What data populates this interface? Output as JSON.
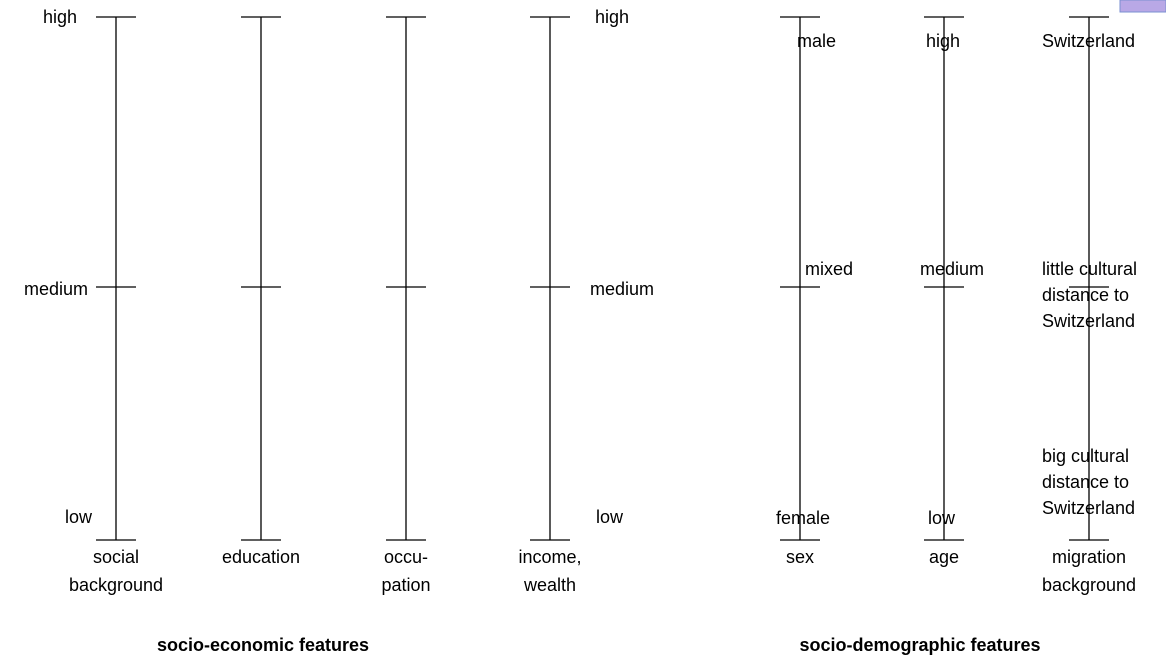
{
  "groups": [
    {
      "title": "socio-economic features",
      "scale_left": [
        "high",
        "medium",
        "low"
      ],
      "scale_right": [
        "high",
        "medium",
        "low"
      ],
      "axes": [
        {
          "label": [
            "social",
            "background"
          ]
        },
        {
          "label": [
            "education"
          ]
        },
        {
          "label": [
            "occu-",
            "pation"
          ]
        },
        {
          "label": [
            "income,",
            "wealth"
          ]
        }
      ]
    },
    {
      "title": "socio-demographic features",
      "axes": [
        {
          "label": [
            "sex"
          ],
          "levels": [
            [
              "male"
            ],
            [
              "mixed"
            ],
            [
              "female"
            ]
          ]
        },
        {
          "label": [
            "age"
          ],
          "levels": [
            [
              "high"
            ],
            [
              "medium"
            ],
            [
              "low"
            ]
          ]
        },
        {
          "label": [
            "migration",
            "background"
          ],
          "levels": [
            [
              "Switzerland"
            ],
            [
              "little cultural",
              "distance to",
              "Switzerland"
            ],
            [
              "big cultural",
              "distance to",
              "Switzerland"
            ]
          ]
        }
      ]
    }
  ]
}
